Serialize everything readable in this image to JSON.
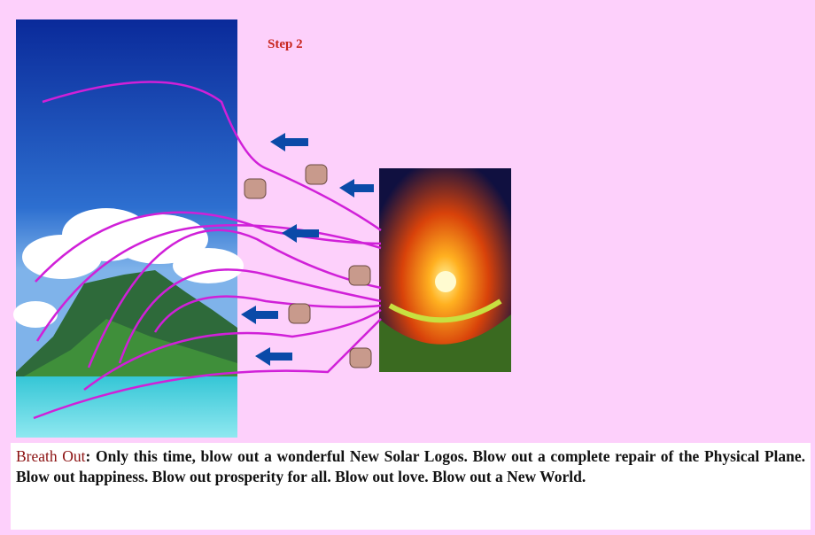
{
  "step_label": "Step 2",
  "caption": {
    "lead": "Breath Out",
    "text": ": Only this time, blow out a wonderful New Solar Logos. Blow out a complete repair of the Physical Plane. Blow out happiness. Blow out prosperity for all. Blow out love. Blow out a New World."
  }
}
